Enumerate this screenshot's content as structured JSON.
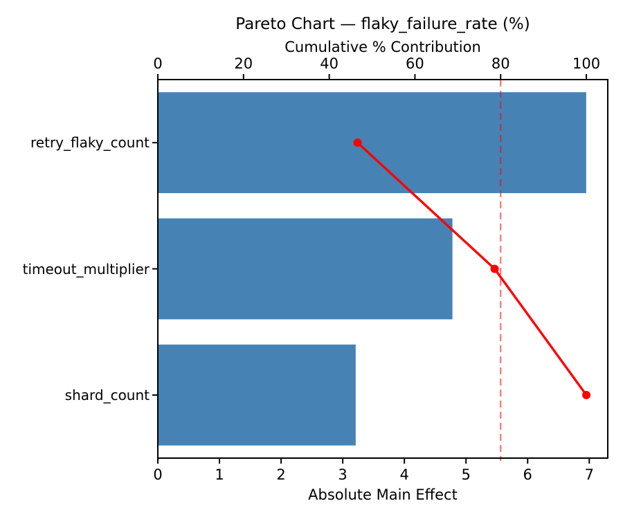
{
  "chart_data": {
    "type": "bar",
    "subtype": "pareto",
    "orientation": "horizontal",
    "title": "Pareto Chart — flaky_failure_rate (%)",
    "categories": [
      "retry_flaky_count",
      "timeout_multiplier",
      "shard_count"
    ],
    "series": [
      {
        "name": "Absolute Main Effect",
        "type": "bar",
        "axis": "bottom",
        "values": [
          6.95,
          4.78,
          3.21
        ],
        "color": "#4682B4"
      },
      {
        "name": "Cumulative % Contribution",
        "type": "line",
        "axis": "top",
        "values": [
          46.6,
          78.6,
          100.0
        ],
        "color": "#FF0000",
        "marker": "circle"
      }
    ],
    "reference_line": {
      "axis": "top",
      "value": 80,
      "style": "dashed",
      "color": "#FF0000",
      "opacity": 0.55
    },
    "bottom_axis": {
      "label": "Absolute Main Effect",
      "ticks": [
        0,
        1,
        2,
        3,
        4,
        5,
        6,
        7
      ],
      "range": [
        0,
        7.3
      ]
    },
    "top_axis": {
      "label": "Cumulative % Contribution",
      "ticks": [
        0,
        20,
        40,
        60,
        80,
        100
      ],
      "range": [
        0,
        105
      ]
    },
    "grid": false,
    "legend": "none",
    "bar_fraction": 0.8
  }
}
